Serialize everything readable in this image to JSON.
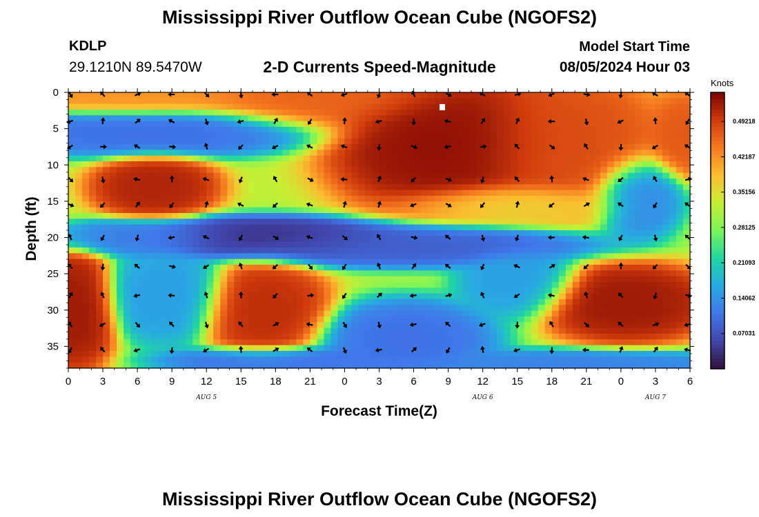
{
  "header": {
    "title": "Mississippi River Outflow Ocean Cube (NGOFS2)",
    "station_id": "KDLP",
    "coordinates": "29.1210N  89.5470W",
    "subtitle": "2-D Currents Speed-Magnitude",
    "model_start_label": "Model Start Time",
    "model_start_value": "08/05/2024 Hour 03"
  },
  "footer": {
    "title": "Mississippi River Outflow Ocean Cube (NGOFS2)"
  },
  "chart_data": {
    "type": "heatmap",
    "xlabel": "Forecast Time(Z)",
    "ylabel": "Depth (ft)",
    "units": "Knots",
    "x_range_hours": [
      0,
      54
    ],
    "ylim": [
      0,
      38
    ],
    "y_inverted": true,
    "x_tick_labels": [
      "0",
      "3",
      "6",
      "9",
      "12",
      "15",
      "18",
      "21",
      "0",
      "3",
      "6",
      "9",
      "12",
      "15",
      "18",
      "21",
      "0",
      "3",
      "6"
    ],
    "y_tick_labels": [
      "0",
      "5",
      "10",
      "15",
      "20",
      "25",
      "30",
      "35"
    ],
    "y_tick_values": [
      0,
      5,
      10,
      15,
      20,
      25,
      30,
      35
    ],
    "date_labels": [
      {
        "text": "AUG 5",
        "hour": 12
      },
      {
        "text": "AUG 6",
        "hour": 36
      },
      {
        "text": "AUG 7",
        "hour": 51
      }
    ],
    "colorbar": {
      "min": 0.0,
      "max": 0.55,
      "tick_labels": [
        "0.07031",
        "0.14062",
        "0.21093",
        "0.28125",
        "0.35156",
        "0.42187",
        "0.49218"
      ],
      "tick_values": [
        0.07031,
        0.14062,
        0.21093,
        0.28125,
        0.35156,
        0.42187,
        0.49218
      ],
      "colormap": "turbo"
    },
    "arrow_hours": [
      0,
      3,
      6,
      9,
      12,
      15,
      18,
      21,
      24,
      27,
      30,
      33,
      36,
      39,
      42,
      45,
      48,
      51,
      54
    ],
    "arrow_depths": [
      0,
      4,
      7.5,
      12,
      15.5,
      20,
      24,
      28,
      32,
      35.5
    ],
    "speed_features": [
      {
        "hour": 33,
        "depth": 7,
        "speed": 0.54,
        "sx": 6,
        "sy": 6
      },
      {
        "hour": 22,
        "depth": 0,
        "speed": 0.46,
        "sx": 7,
        "sy": 3
      },
      {
        "hour": 43,
        "depth": 7,
        "speed": 0.48,
        "sx": 5,
        "sy": 6
      },
      {
        "hour": 6,
        "depth": 0,
        "speed": 0.42,
        "sx": 7,
        "sy": 2
      },
      {
        "hour": 7.5,
        "depth": 13,
        "speed": 0.52,
        "sx": 3.2,
        "sy": 2.6
      },
      {
        "hour": 0.5,
        "depth": 30,
        "speed": 0.53,
        "sx": 2.2,
        "sy": 5
      },
      {
        "hour": 17,
        "depth": 30,
        "speed": 0.51,
        "sx": 3.3,
        "sy": 4
      },
      {
        "hour": 48.5,
        "depth": 29,
        "speed": 0.53,
        "sx": 4.5,
        "sy": 3.2
      },
      {
        "hour": 53.5,
        "depth": 6,
        "speed": 0.47,
        "sx": 1.8,
        "sy": 3.5
      },
      {
        "hour": 39,
        "depth": 15.5,
        "speed": 0.36,
        "sx": 6,
        "sy": 1.8
      },
      {
        "hour": 7,
        "depth": 5.5,
        "speed": 0.1,
        "sx": 8.5,
        "sy": 2.0
      },
      {
        "hour": 17,
        "depth": 20,
        "speed": 0.03,
        "sx": 7,
        "sy": 1.7
      },
      {
        "hour": 29,
        "depth": 21,
        "speed": 0.08,
        "sx": 10,
        "sy": 1.8
      },
      {
        "hour": 6.5,
        "depth": 20,
        "speed": 0.12,
        "sx": 5,
        "sy": 1.5
      },
      {
        "hour": 49.5,
        "depth": 14.5,
        "speed": 0.12,
        "sx": 2.3,
        "sy": 3.3
      },
      {
        "hour": 29.5,
        "depth": 34,
        "speed": 0.1,
        "sx": 4.5,
        "sy": 3.2
      },
      {
        "hour": 8.5,
        "depth": 28,
        "speed": 0.15,
        "sx": 3,
        "sy": 4
      },
      {
        "hour": 39,
        "depth": 26,
        "speed": 0.15,
        "sx": 3,
        "sy": 3
      },
      {
        "hour": 44,
        "depth": 37.5,
        "speed": 0.12,
        "sx": 9,
        "sy": 1.2
      },
      {
        "hour": 18,
        "depth": 37,
        "speed": 0.1,
        "sx": 6,
        "sy": 1.2
      }
    ]
  },
  "colors": {
    "frame": "#000000",
    "marker": "#ffffff",
    "arrow": "#000000"
  }
}
